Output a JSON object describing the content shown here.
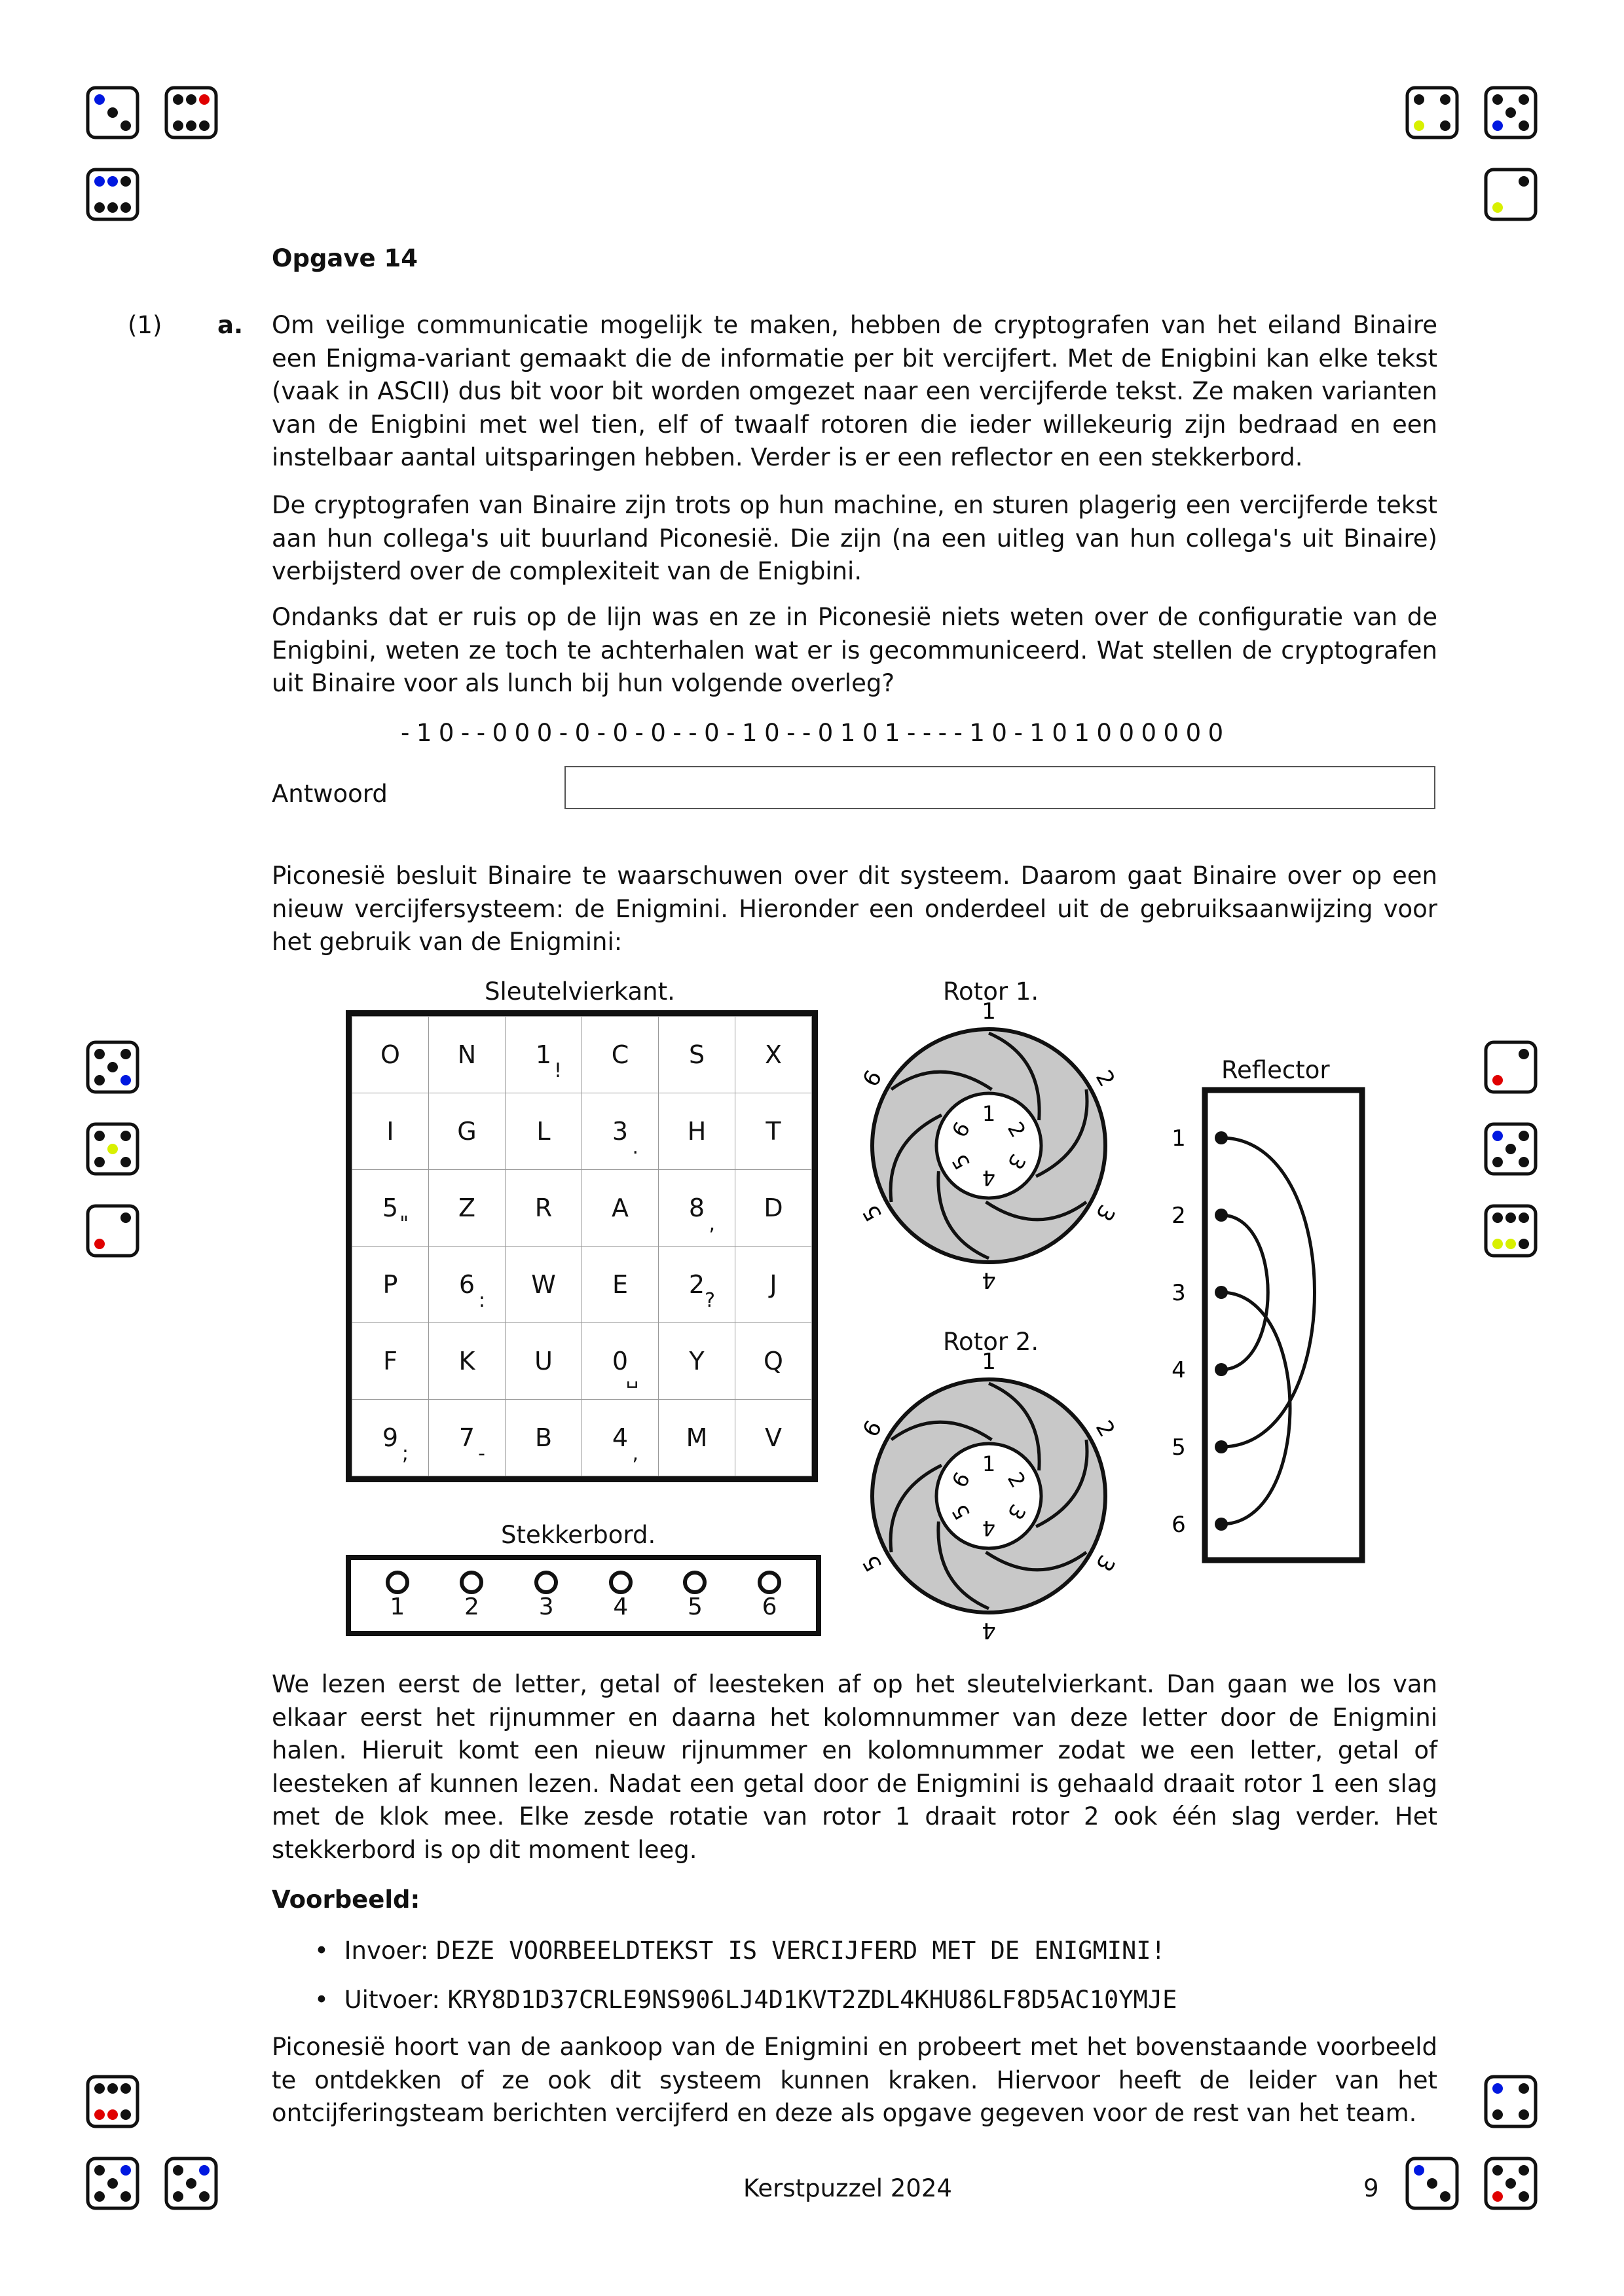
{
  "header": {
    "title": "Opgave 14"
  },
  "question": {
    "points": "(1)",
    "label": "a."
  },
  "paragraphs": {
    "p1": "Om veilige communicatie mogelijk te maken, hebben de cryptografen van het eiland Binaire een Enigma-variant gemaakt die de informatie per bit vercijfert. Met de Enigbini kan elke tekst (vaak in ASCII) dus bit voor bit worden omgezet naar een vercijferde tekst. Ze maken varianten van de Enigbini met wel tien, elf of twaalf rotoren die ieder willekeurig zijn bedraad en een instelbaar aantal uitsparingen hebben. Verder is er een reflector en een stekkerbord.",
    "p2": "De cryptografen van Binaire zijn trots op hun machine, en sturen plagerig een vercijferde tekst aan hun collega's uit buurland Piconesië. Die zijn (na een uitleg van hun collega's uit Binaire) verbijsterd over de complexiteit van de Enigbini.",
    "p3": "Ondanks dat er ruis op de lijn was en ze in Piconesië niets weten over de configuratie van de Enigbini, weten ze toch te achterhalen wat er is gecommuniceerd. Wat stellen de cryptografen uit Binaire voor als lunch bij hun volgende overleg?",
    "cipher": "-10--000-0-0-0--0-10--0101----10-101000000",
    "answer_label": "Antwoord",
    "p4": "Piconesië besluit Binaire te waarschuwen over dit systeem. Daarom gaat Binaire over op een nieuw vercijfersysteem: de Enigmini. Hieronder een onderdeel uit de gebruiksaanwijzing voor het gebruik van de Enigmini:",
    "p5": "We lezen eerst de letter, getal of leesteken af op het sleutelvierkant. Dan gaan we los van elkaar eerst het rijnummer en daarna het kolomnummer van deze letter door de Enigmini halen. Hieruit komt een nieuw rijnummer en kolomnummer zodat we een letter, getal of leesteken af kunnen lezen. Nadat een getal door de Enigmini is gehaald draait rotor 1 een slag met de klok mee. Elke zesde rotatie van rotor 1 draait rotor 2 ook één slag verder. Het stekkerbord is op dit moment leeg.",
    "example_title": "Voorbeeld:",
    "input_label": "Invoer:",
    "input_value": "DEZE VOORBEELDTEKST IS VERCIJFERD MET DE ENIGMINI!",
    "output_label": "Uitvoer:",
    "output_value": "KRY8D1D37CRLE9NS906LJ4D1KVT2ZDL4KHU86LF8D5AC10YMJE",
    "p6": "Piconesië hoort van de aankoop van de Enigmini en probeert met het bovenstaande voorbeeld te ontdekken of ze ook dit systeem kunnen kraken. Hiervoor heeft de leider van het ontcijferingsteam berichten vercijferd en deze als opgave gegeven voor de rest van het team."
  },
  "figure": {
    "square_title": "Sleutelvierkant.",
    "square": [
      [
        {
          "c": "O",
          "m": ""
        },
        {
          "c": "N",
          "m": ""
        },
        {
          "c": "1",
          "m": "!"
        },
        {
          "c": "C",
          "m": ""
        },
        {
          "c": "S",
          "m": ""
        },
        {
          "c": "X",
          "m": ""
        }
      ],
      [
        {
          "c": "I",
          "m": ""
        },
        {
          "c": "G",
          "m": ""
        },
        {
          "c": "L",
          "m": ""
        },
        {
          "c": "3",
          "m": "."
        },
        {
          "c": "H",
          "m": ""
        },
        {
          "c": "T",
          "m": ""
        }
      ],
      [
        {
          "c": "5",
          "m": "\""
        },
        {
          "c": "Z",
          "m": ""
        },
        {
          "c": "R",
          "m": ""
        },
        {
          "c": "A",
          "m": ""
        },
        {
          "c": "8",
          "m": ","
        },
        {
          "c": "D",
          "m": ""
        }
      ],
      [
        {
          "c": "P",
          "m": ""
        },
        {
          "c": "6",
          "m": ":"
        },
        {
          "c": "W",
          "m": ""
        },
        {
          "c": "E",
          "m": ""
        },
        {
          "c": "2",
          "m": "?"
        },
        {
          "c": "J",
          "m": ""
        }
      ],
      [
        {
          "c": "F",
          "m": ""
        },
        {
          "c": "K",
          "m": ""
        },
        {
          "c": "U",
          "m": ""
        },
        {
          "c": "0",
          "m": "␣"
        },
        {
          "c": "Y",
          "m": ""
        },
        {
          "c": "Q",
          "m": ""
        }
      ],
      [
        {
          "c": "9",
          "m": ";"
        },
        {
          "c": "7",
          "m": "-"
        },
        {
          "c": "B",
          "m": ""
        },
        {
          "c": "4",
          "m": ","
        },
        {
          "c": "M",
          "m": ""
        },
        {
          "c": "V",
          "m": ""
        }
      ]
    ],
    "plug_title": "Stekkerbord.",
    "plugs": [
      "1",
      "2",
      "3",
      "4",
      "5",
      "6"
    ],
    "rotor1_title": "Rotor 1.",
    "rotor2_title": "Rotor 2.",
    "rotor_numbers": [
      "1",
      "2",
      "3",
      "4",
      "5",
      "6"
    ],
    "reflector_title": "Reflector",
    "reflector_numbers": [
      "1",
      "2",
      "3",
      "4",
      "5",
      "6"
    ],
    "reflector_pairs": [
      [
        1,
        5
      ],
      [
        2,
        4
      ],
      [
        3,
        6
      ]
    ]
  },
  "footer": {
    "center": "Kerstpuzzel 2024",
    "page": "9"
  },
  "dice": [
    {
      "v": 3,
      "colors": {
        "0": "#0018e0"
      }
    },
    {
      "v": 6,
      "colors": {
        "2": "#e00000"
      }
    },
    {
      "v": 6,
      "colors": {
        "0": "#0018e0",
        "1": "#0018e0"
      }
    },
    {
      "v": 4,
      "colors": {
        "2": "#d8f000"
      }
    },
    {
      "v": 5,
      "colors": {
        "3": "#0018e0"
      }
    },
    {
      "v": 2,
      "colors": {
        "1": "#d8f000"
      }
    },
    {
      "v": 5,
      "colors": {
        "4": "#0018e0"
      }
    },
    {
      "v": 5,
      "colors": {
        "2": "#d8f000"
      }
    },
    {
      "v": 2,
      "colors": {
        "1": "#e00000"
      }
    },
    {
      "v": 2,
      "colors": {
        "1": "#e00000"
      }
    },
    {
      "v": 5,
      "colors": {
        "0": "#0018e0"
      }
    },
    {
      "v": 6,
      "colors": {
        "3": "#d8f000",
        "4": "#d8f000"
      }
    },
    {
      "v": 6,
      "colors": {
        "3": "#e00000",
        "4": "#e00000"
      }
    },
    {
      "v": 5,
      "colors": {
        "1": "#0018e0"
      }
    },
    {
      "v": 5,
      "colors": {
        "1": "#0018e0"
      }
    },
    {
      "v": 4,
      "colors": {
        "0": "#0018e0"
      }
    },
    {
      "v": 3,
      "colors": {
        "0": "#0018e0"
      }
    },
    {
      "v": 5,
      "colors": {
        "3": "#e00000"
      }
    }
  ]
}
